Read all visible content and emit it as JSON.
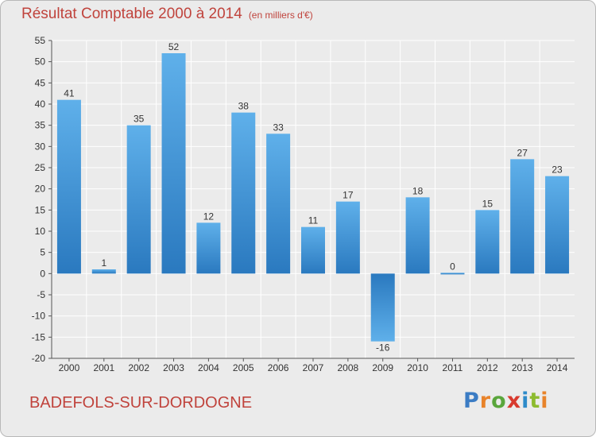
{
  "header": {
    "title": "Résultat Comptable 2000 à 2014",
    "unit": "(en milliers d'€)"
  },
  "footer": {
    "city": "BADEFOLS-SUR-DORDOGNE",
    "logo": {
      "text": "Proxiti",
      "letters": [
        {
          "char": "P",
          "color": "#3b7cc4"
        },
        {
          "char": "r",
          "color": "#e8832a"
        },
        {
          "char": "o",
          "color": "#5aa63c"
        },
        {
          "char": "x",
          "color": "#d83a2e"
        },
        {
          "char": "i",
          "color": "#2e8bc9"
        },
        {
          "char": "t",
          "color": "#8dbb2f"
        },
        {
          "char": "i",
          "color": "#e8832a"
        }
      ]
    }
  },
  "colors": {
    "title": "#c0433c",
    "bar_light": "#5fb0ea",
    "bar_dark": "#2a79bf",
    "grid": "#ffffff",
    "background": "#ebebeb"
  },
  "chart_data": {
    "type": "bar",
    "title": "Résultat Comptable 2000 à 2014",
    "xlabel": "",
    "ylabel": "(en milliers d'€)",
    "categories": [
      "2000",
      "2001",
      "2002",
      "2003",
      "2004",
      "2005",
      "2006",
      "2007",
      "2008",
      "2009",
      "2010",
      "2011",
      "2012",
      "2013",
      "2014"
    ],
    "values": [
      41,
      1,
      35,
      52,
      12,
      38,
      33,
      11,
      17,
      -16,
      18,
      0,
      15,
      27,
      23
    ],
    "value_labels": [
      "41",
      "1",
      "35",
      "52",
      "12",
      "38",
      "33",
      "11",
      "17",
      "-16",
      "18",
      "0",
      "15",
      "27",
      "23"
    ],
    "ylim": [
      -20,
      55
    ],
    "yticks": [
      -20,
      -15,
      -10,
      -5,
      0,
      5,
      10,
      15,
      20,
      25,
      30,
      35,
      40,
      45,
      50,
      55
    ],
    "grid": true,
    "legend": "none"
  }
}
